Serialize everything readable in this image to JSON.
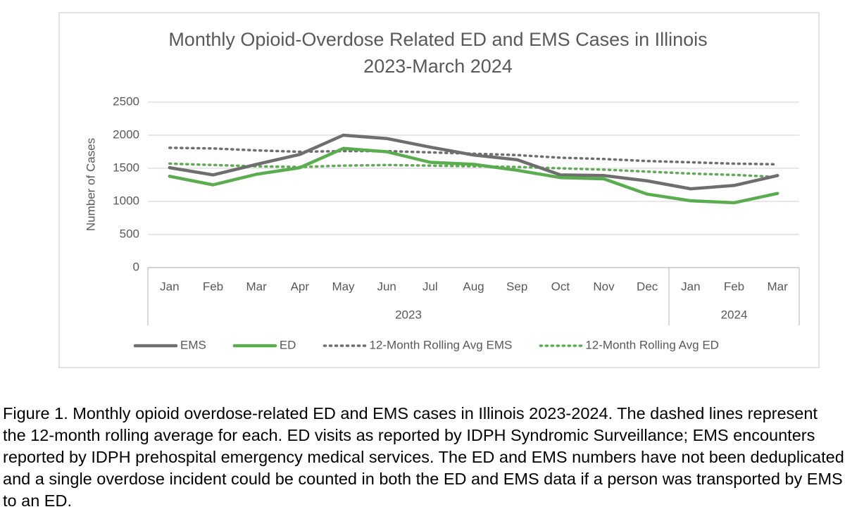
{
  "chart_data": {
    "type": "line",
    "title": [
      "Monthly Opioid-Overdose Related ED and EMS Cases in Illinois",
      "2023-March 2024"
    ],
    "y_label": "Number of Cases",
    "category_groups": [
      {
        "label": "2023",
        "categories": [
          "Jan",
          "Feb",
          "Mar",
          "Apr",
          "May",
          "Jun",
          "Jul",
          "Aug",
          "Sep",
          "Oct",
          "Nov",
          "Dec"
        ]
      },
      {
        "label": "2024",
        "categories": [
          "Jan",
          "Feb",
          "Mar"
        ]
      }
    ],
    "ylim": [
      0,
      2500
    ],
    "yticks": [
      0,
      500,
      1000,
      1500,
      2000,
      2500
    ],
    "grid": true,
    "legend": "bottom",
    "series": [
      {
        "name": "EMS",
        "color": "#6e6e6e",
        "style": "solid",
        "values": [
          1510,
          1400,
          1560,
          1710,
          2000,
          1950,
          1820,
          1700,
          1630,
          1400,
          1390,
          1310,
          1190,
          1240,
          1390
        ]
      },
      {
        "name": "ED",
        "color": "#5aad4e",
        "style": "solid",
        "values": [
          1380,
          1250,
          1410,
          1510,
          1800,
          1750,
          1590,
          1560,
          1470,
          1360,
          1340,
          1110,
          1010,
          980,
          1120
        ]
      },
      {
        "name": "12-Month Rolling Avg EMS",
        "color": "#6e6e6e",
        "style": "dotted",
        "values": [
          1810,
          1800,
          1770,
          1750,
          1760,
          1760,
          1740,
          1720,
          1700,
          1660,
          1640,
          1610,
          1590,
          1570,
          1560
        ]
      },
      {
        "name": "12-Month Rolling Avg ED",
        "color": "#5aad4e",
        "style": "dotted",
        "values": [
          1570,
          1550,
          1530,
          1520,
          1540,
          1550,
          1540,
          1530,
          1520,
          1500,
          1480,
          1450,
          1420,
          1400,
          1370
        ]
      }
    ]
  },
  "caption": "Figure 1. Monthly opioid overdose-related ED and EMS cases in Illinois 2023-2024. The dashed lines represent the 12-month rolling average for each. ED visits as reported by IDPH Syndromic Surveillance; EMS encounters reported by IDPH prehospital emergency medical services. The ED and EMS numbers have not been deduplicated and a single overdose incident could be counted in both the ED and EMS data if a person was transported by EMS to an ED."
}
